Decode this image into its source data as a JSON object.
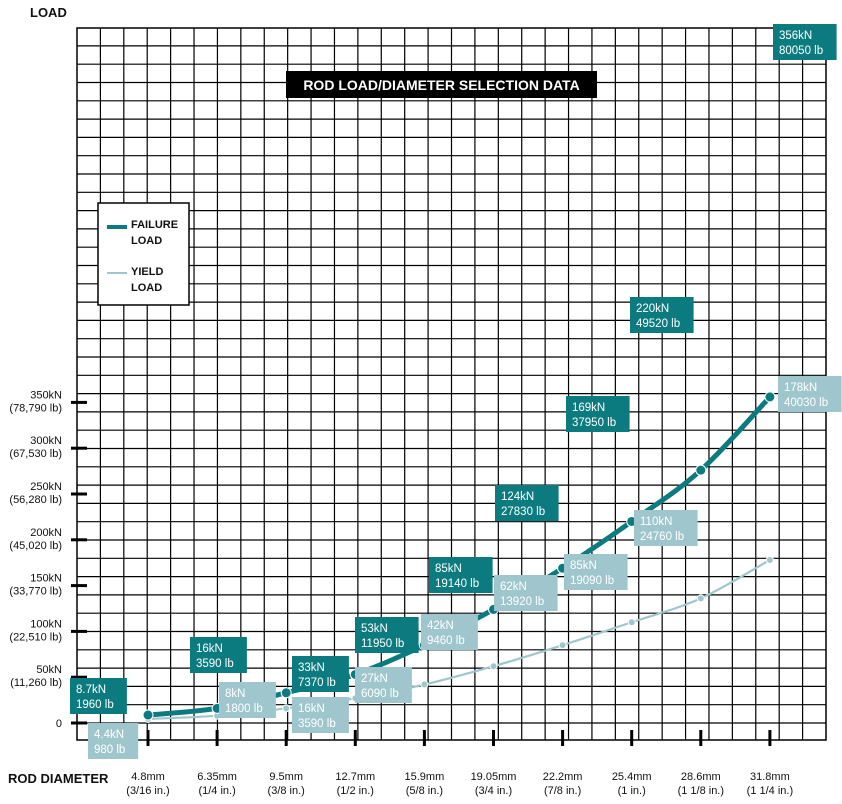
{
  "chart_data": {
    "type": "line",
    "title": "ROD LOAD/DIAMETER SELECTION DATA",
    "ylabel": "LOAD",
    "xlabel": "ROD DIAMETER",
    "ylim": [
      0,
      370
    ],
    "grid": true,
    "legend_position": "left",
    "y_ticks": [
      {
        "value": 0,
        "label": "0",
        "sub": ""
      },
      {
        "value": 50,
        "label": "50kN",
        "sub": "(11,260 lb)"
      },
      {
        "value": 100,
        "label": "100kN",
        "sub": "(22,510 lb)"
      },
      {
        "value": 150,
        "label": "150kN",
        "sub": "(33,770 lb)"
      },
      {
        "value": 200,
        "label": "200kN",
        "sub": "(45,020 lb)"
      },
      {
        "value": 250,
        "label": "250kN",
        "sub": "(56,280 lb)"
      },
      {
        "value": 300,
        "label": "300kN",
        "sub": "(67,530 lb)"
      },
      {
        "value": 350,
        "label": "350kN",
        "sub": "(78,790 lb)"
      }
    ],
    "categories": [
      {
        "label": "4.8mm",
        "sub": "(3/16 in.)"
      },
      {
        "label": "6.35mm",
        "sub": "(1/4 in.)"
      },
      {
        "label": "9.5mm",
        "sub": "(3/8 in.)"
      },
      {
        "label": "12.7mm",
        "sub": "(1/2 in.)"
      },
      {
        "label": "15.9mm",
        "sub": "(5/8 in.)"
      },
      {
        "label": "19.05mm",
        "sub": "(3/4 in.)"
      },
      {
        "label": "22.2mm",
        "sub": "(7/8 in.)"
      },
      {
        "label": "25.4mm",
        "sub": "(1 in.)"
      },
      {
        "label": "28.6mm",
        "sub": "(1 1/8 in.)"
      },
      {
        "label": "31.8mm",
        "sub": "(1 1/4 in.)"
      }
    ],
    "series": [
      {
        "name": "FAILURE LOAD",
        "color": "#0b7b80",
        "values": [
          8.7,
          16,
          33,
          53,
          85,
          124,
          169,
          220,
          276,
          356
        ],
        "labels": [
          [
            "8.7kN",
            "1960 lb"
          ],
          [
            "16kN",
            "3590 lb"
          ],
          [
            "33kN",
            "7370 lb"
          ],
          [
            "53kN",
            "11950 lb"
          ],
          [
            "85kN",
            "19140 lb"
          ],
          [
            "124kN",
            "27830 lb"
          ],
          [
            "169kN",
            "37950 lb"
          ],
          [
            "220kN",
            "49520 lb"
          ],
          null,
          [
            "356kN",
            "80050 lb"
          ]
        ]
      },
      {
        "name": "YIELD LOAD",
        "color": "#9fc6cd",
        "values": [
          4.4,
          8,
          16,
          27,
          42,
          62,
          85,
          110,
          136,
          178
        ],
        "labels": [
          [
            "4.4kN",
            "980 lb"
          ],
          [
            "8kN",
            "1800 lb"
          ],
          [
            "16kN",
            "3590 lb"
          ],
          [
            "27kN",
            "6090 lb"
          ],
          [
            "42kN",
            "9460 lb"
          ],
          [
            "62kN",
            "13920 lb"
          ],
          [
            "85kN",
            "19090 lb"
          ],
          [
            "110kN",
            "24760 lb"
          ],
          null,
          [
            "178kN",
            "40030 lb"
          ]
        ]
      }
    ],
    "legend": [
      {
        "line1": "FAILURE",
        "line2": "LOAD"
      },
      {
        "line1": "YIELD",
        "line2": "LOAD"
      }
    ]
  }
}
